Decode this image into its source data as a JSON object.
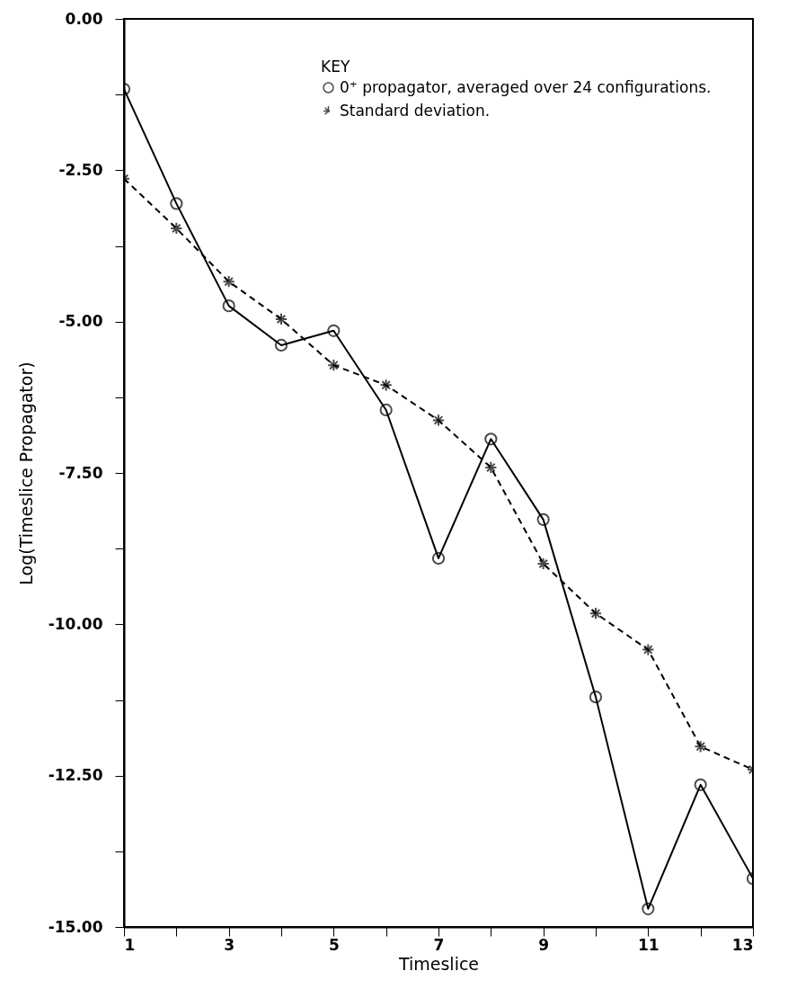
{
  "chart_data": {
    "type": "line",
    "xlabel": "Timeslice",
    "ylabel": "Log(Timeslice Propagator)",
    "legend_title": "KEY",
    "legend": "top right",
    "grid": false,
    "x": [
      1,
      2,
      3,
      4,
      5,
      6,
      7,
      8,
      9,
      10,
      11,
      12,
      13
    ],
    "xlim": [
      1,
      13
    ],
    "xticks": [
      1,
      {
        "value": 2,
        "label": null
      },
      3,
      {
        "value": 4,
        "label": null
      },
      5,
      {
        "value": 6,
        "label": null
      },
      7,
      {
        "value": 8,
        "label": null
      },
      9,
      {
        "value": 10,
        "label": null
      },
      11,
      {
        "value": 12,
        "label": null
      },
      13
    ],
    "ylim": [
      -15,
      0
    ],
    "yticks": [
      {
        "value": 0,
        "label": "0.00"
      },
      {
        "value": -1.25,
        "label": null
      },
      {
        "value": -2.5,
        "label": "-2.50"
      },
      {
        "value": -3.75,
        "label": null
      },
      {
        "value": -5,
        "label": "-5.00"
      },
      {
        "value": -6.25,
        "label": null
      },
      {
        "value": -7.5,
        "label": "-7.50"
      },
      {
        "value": -8.75,
        "label": null
      },
      {
        "value": -10,
        "label": "-10.00"
      },
      {
        "value": -11.25,
        "label": null
      },
      {
        "value": -12.5,
        "label": "-12.50"
      },
      {
        "value": -13.75,
        "label": null
      },
      {
        "value": -15,
        "label": "-15.00"
      }
    ],
    "series": [
      {
        "name": "0⁺ propagator, averaged over 24 configurations.",
        "color": "#000000",
        "marker": "circle",
        "line_style": "solid",
        "values": [
          -1.16,
          -3.05,
          -4.74,
          -5.39,
          -5.15,
          -6.46,
          -8.91,
          -6.94,
          -8.27,
          -11.2,
          -14.7,
          -12.65,
          -14.2
        ]
      },
      {
        "name": "Standard deviation.",
        "color": "#000000",
        "marker": "cross",
        "line_style": "dashed",
        "values": [
          -2.64,
          -3.46,
          -4.34,
          -4.96,
          -5.72,
          -6.05,
          -6.63,
          -7.41,
          -9.0,
          -9.82,
          -10.42,
          -12.02,
          -12.4
        ]
      }
    ]
  }
}
